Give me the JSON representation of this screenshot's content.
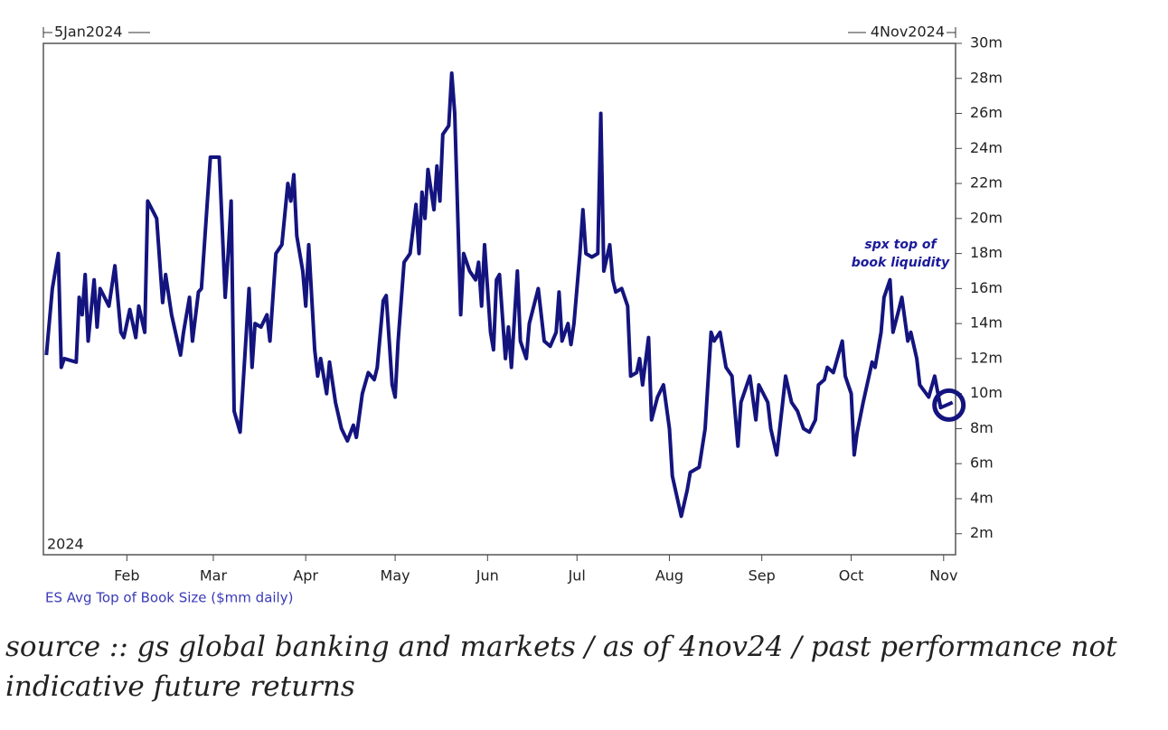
{
  "chart_data": {
    "type": "line",
    "range_labels": [
      "5Jan2024",
      "4Nov2024"
    ],
    "year_label": "2024",
    "y_label": "ES Avg Top of Book Size ($mm daily)",
    "annotation": [
      "spx top of",
      "book liquidity"
    ],
    "footnote": "source :: gs global banking and markets / as of 4nov24 / past performance not indicative future returns",
    "color": "#14147f",
    "xlim": [
      "2024-01-04",
      "2024-11-05"
    ],
    "xticks": [
      {
        "value": "2024-02-01",
        "label": "Feb"
      },
      {
        "value": "2024-03-01",
        "label": "Mar"
      },
      {
        "value": "2024-04-01",
        "label": "Apr"
      },
      {
        "value": "2024-05-01",
        "label": "May"
      },
      {
        "value": "2024-06-01",
        "label": "Jun"
      },
      {
        "value": "2024-07-01",
        "label": "Jul"
      },
      {
        "value": "2024-08-01",
        "label": "Aug"
      },
      {
        "value": "2024-09-01",
        "label": "Sep"
      },
      {
        "value": "2024-10-01",
        "label": "Oct"
      },
      {
        "value": "2024-11-01",
        "label": "Nov"
      }
    ],
    "ylim": [
      0.8,
      30
    ],
    "yticks": [
      {
        "value": 2,
        "label": "2m"
      },
      {
        "value": 4,
        "label": "4m"
      },
      {
        "value": 6,
        "label": "6m"
      },
      {
        "value": 8,
        "label": "8m"
      },
      {
        "value": 10,
        "label": "10m"
      },
      {
        "value": 12,
        "label": "12m"
      },
      {
        "value": 14,
        "label": "14m"
      },
      {
        "value": 16,
        "label": "16m"
      },
      {
        "value": 18,
        "label": "18m"
      },
      {
        "value": 20,
        "label": "20m"
      },
      {
        "value": 22,
        "label": "22m"
      },
      {
        "value": 24,
        "label": "24m"
      },
      {
        "value": 26,
        "label": "26m"
      },
      {
        "value": 28,
        "label": "28m"
      },
      {
        "value": 30,
        "label": "30m"
      }
    ],
    "x": [
      "2024-01-05",
      "2024-01-07",
      "2024-01-08",
      "2024-01-09",
      "2024-01-10",
      "2024-01-11",
      "2024-01-15",
      "2024-01-16",
      "2024-01-17",
      "2024-01-18",
      "2024-01-19",
      "2024-01-21",
      "2024-01-22",
      "2024-01-23",
      "2024-01-26",
      "2024-01-28",
      "2024-01-30",
      "2024-01-31",
      "2024-02-02",
      "2024-02-04",
      "2024-02-05",
      "2024-02-07",
      "2024-02-08",
      "2024-02-11",
      "2024-02-13",
      "2024-02-14",
      "2024-02-16",
      "2024-02-19",
      "2024-02-20",
      "2024-02-22",
      "2024-02-23",
      "2024-02-25",
      "2024-02-26",
      "2024-02-29",
      "2024-03-03",
      "2024-03-05",
      "2024-03-06",
      "2024-03-07",
      "2024-03-08",
      "2024-03-10",
      "2024-03-13",
      "2024-03-14",
      "2024-03-15",
      "2024-03-17",
      "2024-03-19",
      "2024-03-20",
      "2024-03-22",
      "2024-03-24",
      "2024-03-26",
      "2024-03-27",
      "2024-03-28",
      "2024-03-29",
      "2024-03-31",
      "2024-04-01",
      "2024-04-02",
      "2024-04-04",
      "2024-04-05",
      "2024-04-06",
      "2024-04-08",
      "2024-04-09",
      "2024-04-11",
      "2024-04-13",
      "2024-04-15",
      "2024-04-17",
      "2024-04-18",
      "2024-04-20",
      "2024-04-22",
      "2024-04-24",
      "2024-04-25",
      "2024-04-27",
      "2024-04-28",
      "2024-04-30",
      "2024-05-01",
      "2024-05-02",
      "2024-05-04",
      "2024-05-06",
      "2024-05-08",
      "2024-05-09",
      "2024-05-10",
      "2024-05-11",
      "2024-05-12",
      "2024-05-14",
      "2024-05-15",
      "2024-05-16",
      "2024-05-17",
      "2024-05-19",
      "2024-05-20",
      "2024-05-21",
      "2024-05-23",
      "2024-05-24",
      "2024-05-26",
      "2024-05-28",
      "2024-05-29",
      "2024-05-30",
      "2024-05-31",
      "2024-06-01",
      "2024-06-02",
      "2024-06-03",
      "2024-06-04",
      "2024-06-05",
      "2024-06-07",
      "2024-06-08",
      "2024-06-09",
      "2024-06-11",
      "2024-06-12",
      "2024-06-14",
      "2024-06-15",
      "2024-06-18",
      "2024-06-20",
      "2024-06-22",
      "2024-06-24",
      "2024-06-25",
      "2024-06-26",
      "2024-06-28",
      "2024-06-29",
      "2024-06-30",
      "2024-07-02",
      "2024-07-03",
      "2024-07-04",
      "2024-07-06",
      "2024-07-08",
      "2024-07-09",
      "2024-07-10",
      "2024-07-12",
      "2024-07-13",
      "2024-07-14",
      "2024-07-16",
      "2024-07-18",
      "2024-07-19",
      "2024-07-21",
      "2024-07-22",
      "2024-07-23",
      "2024-07-25",
      "2024-07-26",
      "2024-07-28",
      "2024-07-30",
      "2024-08-01",
      "2024-08-02",
      "2024-08-05",
      "2024-08-07",
      "2024-08-08",
      "2024-08-11",
      "2024-08-13",
      "2024-08-15",
      "2024-08-16",
      "2024-08-18",
      "2024-08-20",
      "2024-08-22",
      "2024-08-24",
      "2024-08-25",
      "2024-08-28",
      "2024-08-30",
      "2024-08-31",
      "2024-09-03",
      "2024-09-04",
      "2024-09-06",
      "2024-09-08",
      "2024-09-09",
      "2024-09-11",
      "2024-09-13",
      "2024-09-15",
      "2024-09-17",
      "2024-09-19",
      "2024-09-20",
      "2024-09-22",
      "2024-09-23",
      "2024-09-25",
      "2024-09-26",
      "2024-09-28",
      "2024-09-29",
      "2024-10-01",
      "2024-10-02",
      "2024-10-03",
      "2024-10-05",
      "2024-10-08",
      "2024-10-09",
      "2024-10-11",
      "2024-10-12",
      "2024-10-14",
      "2024-10-15",
      "2024-10-17",
      "2024-10-18",
      "2024-10-20",
      "2024-10-21",
      "2024-10-23",
      "2024-10-24",
      "2024-10-27",
      "2024-10-29",
      "2024-10-31",
      "2024-11-04"
    ],
    "values": [
      12.2,
      16,
      17,
      18,
      11.5,
      12,
      11.8,
      15.5,
      14.5,
      16.8,
      13,
      16.5,
      13.8,
      16,
      15,
      17.3,
      13.5,
      13.2,
      14.8,
      13.2,
      15,
      13.5,
      21,
      20,
      15.2,
      16.8,
      14.5,
      12.2,
      13.5,
      15.5,
      13,
      15.8,
      16,
      23.5,
      23.5,
      15.5,
      18,
      21,
      9,
      7.8,
      16,
      11.5,
      14,
      13.8,
      14.5,
      13,
      18,
      18.5,
      22,
      21,
      22.5,
      19,
      17,
      15,
      18.5,
      12.5,
      11,
      12,
      10,
      11.8,
      9.5,
      8,
      7.3,
      8.2,
      7.5,
      10,
      11.2,
      10.8,
      11.5,
      15.3,
      15.6,
      10.5,
      9.8,
      13,
      17.5,
      18,
      20.8,
      18,
      21.5,
      20,
      22.8,
      20.5,
      23,
      21,
      24.8,
      25.3,
      28.3,
      26,
      14.5,
      18,
      17,
      16.5,
      17.5,
      15,
      18.5,
      16,
      13.5,
      12.5,
      16.5,
      16.8,
      12,
      13.8,
      11.5,
      17,
      13,
      12,
      14,
      16,
      13,
      12.7,
      13.5,
      15.8,
      13,
      14,
      12.8,
      14,
      18,
      20.5,
      18,
      17.8,
      18,
      26,
      17,
      18.5,
      16.5,
      15.8,
      16,
      15,
      11,
      11.2,
      12,
      10.5,
      13.2,
      8.5,
      9.8,
      10.5,
      8,
      5.3,
      3,
      4.5,
      5.5,
      5.8,
      8,
      13.5,
      13,
      13.5,
      11.5,
      11,
      7,
      9.5,
      11,
      8.5,
      10.5,
      9.5,
      8,
      6.5,
      9.5,
      11,
      9.5,
      9,
      8,
      7.8,
      8.5,
      10.5,
      10.8,
      11.5,
      11.2,
      11.8,
      13,
      11,
      10,
      6.5,
      7.8,
      9.5,
      11.8,
      11.5,
      13.5,
      15.5,
      16.5,
      13.5,
      14.8,
      15.5,
      13,
      13.5,
      12,
      10.5,
      9.8,
      11,
      9.2,
      9.5
    ]
  }
}
